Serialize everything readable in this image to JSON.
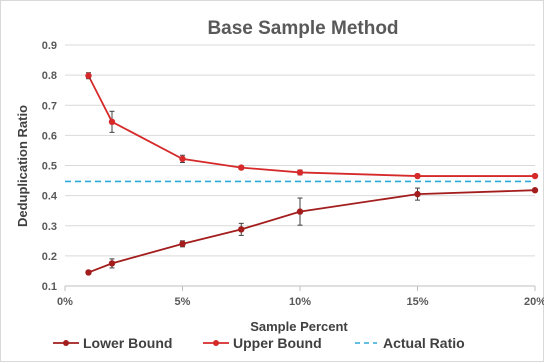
{
  "chart_data": {
    "type": "line",
    "title": "Base Sample Method",
    "xlabel": "Sample Percent",
    "ylabel": "Deduplication Ratio",
    "xlim": [
      0,
      20
    ],
    "ylim": [
      0.1,
      0.9
    ],
    "x_ticks": [
      {
        "value": 0,
        "label": "0%"
      },
      {
        "value": 5,
        "label": "5%"
      },
      {
        "value": 10,
        "label": "10%"
      },
      {
        "value": 15,
        "label": "15%"
      },
      {
        "value": 20,
        "label": "20%"
      }
    ],
    "y_ticks": [
      {
        "value": 0.1,
        "label": "0.1"
      },
      {
        "value": 0.2,
        "label": "0.2"
      },
      {
        "value": 0.3,
        "label": "0.3"
      },
      {
        "value": 0.4,
        "label": "0.4"
      },
      {
        "value": 0.5,
        "label": "0.5"
      },
      {
        "value": 0.6,
        "label": "0.6"
      },
      {
        "value": 0.7,
        "label": "0.7"
      },
      {
        "value": 0.8,
        "label": "0.8"
      },
      {
        "value": 0.9,
        "label": "0.9"
      }
    ],
    "grid": "horizontal",
    "legend_position": "bottom",
    "series": [
      {
        "name": "Lower Bound",
        "color": "#a31d1d",
        "style": "solid-marker",
        "x": [
          1,
          2,
          5,
          7.5,
          10,
          15,
          20
        ],
        "values": [
          0.145,
          0.175,
          0.24,
          0.288,
          0.347,
          0.405,
          0.418
        ],
        "error": [
          0.005,
          0.015,
          0.01,
          0.02,
          0.045,
          0.02,
          0.005
        ]
      },
      {
        "name": "Upper Bound",
        "color": "#d62a2a",
        "style": "solid-marker",
        "x": [
          1,
          2,
          5,
          7.5,
          10,
          15,
          20
        ],
        "values": [
          0.798,
          0.645,
          0.522,
          0.493,
          0.477,
          0.465,
          0.465
        ],
        "error": [
          0.01,
          0.035,
          0.012,
          0.005,
          0.008,
          0.006,
          0.005
        ]
      },
      {
        "name": "Actual Ratio",
        "color": "#2eaad8",
        "style": "dashed",
        "x": [
          0,
          20
        ],
        "values": [
          0.447,
          0.447
        ]
      }
    ]
  }
}
